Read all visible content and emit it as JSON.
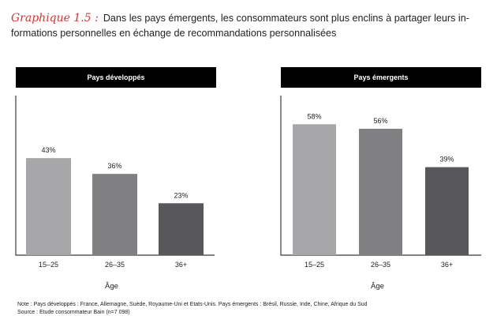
{
  "figure": {
    "label": "Graphique 1.5 :",
    "title": "Dans les pays émergents, les consommateurs sont plus enclins à partager leurs in- formations personnelles en échange de recommandations personnalisées"
  },
  "chart_data": [
    {
      "type": "bar",
      "title": "Pays développés",
      "xlabel": "Âge",
      "ylabel": "",
      "categories": [
        "15–25",
        "26–35",
        "36+"
      ],
      "values": [
        43,
        36,
        23
      ],
      "value_labels": [
        "43%",
        "36%",
        "23%"
      ],
      "ylim": [
        0,
        70
      ],
      "colors": [
        "#a7a7a9",
        "#808082",
        "#58585a"
      ]
    },
    {
      "type": "bar",
      "title": "Pays émergents",
      "xlabel": "Âge",
      "ylabel": "",
      "categories": [
        "15–25",
        "26–35",
        "36+"
      ],
      "values": [
        58,
        56,
        39
      ],
      "value_labels": [
        "58%",
        "56%",
        "39%"
      ],
      "ylim": [
        0,
        70
      ],
      "colors": [
        "#a7a7a9",
        "#808082",
        "#58585a"
      ]
    }
  ],
  "notes": {
    "note": "Note : Pays développés : France, Allemagne, Suède, Royaume-Uni et Etats-Unis. Pays émergents : Brésil, Russie, Inde, Chine, Afrique du Sud",
    "source": "Source : Etude consommateur Bain (n=7 098)"
  }
}
